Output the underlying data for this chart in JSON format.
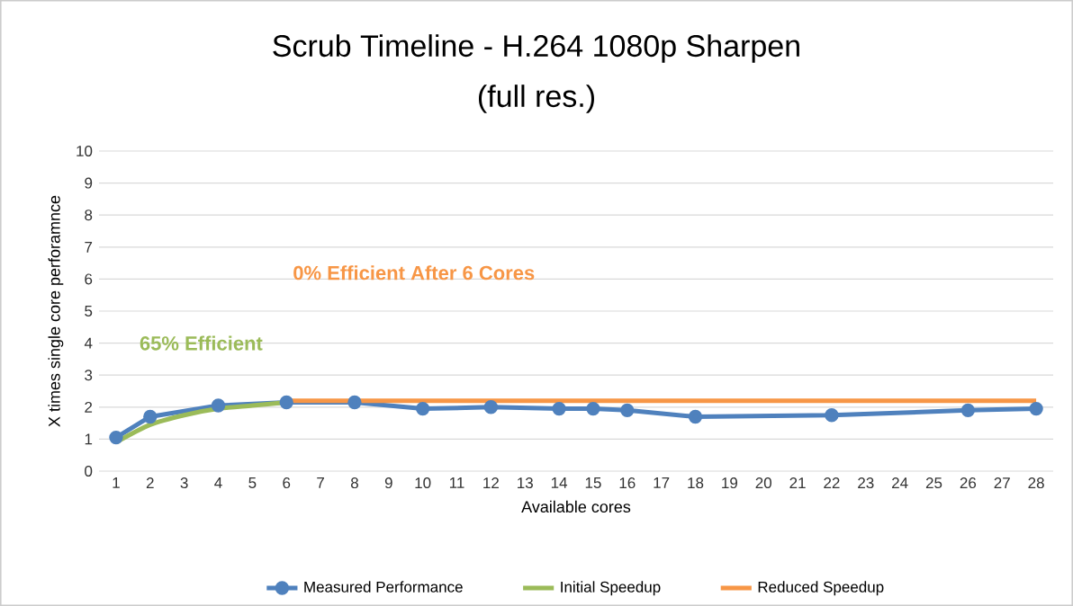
{
  "chart_data": {
    "type": "line",
    "title": "Scrub Timeline - H.264 1080p Sharpen",
    "subtitle": "(full res.)",
    "xlabel": "Available cores",
    "ylabel": "X times single core perforamnce",
    "annotations": [
      "0% Efficient After 6 Cores",
      "65% Efficient"
    ],
    "series": [
      {
        "name": "Measured Performance",
        "color": "#4f81bd",
        "marker": "circle",
        "x": [
          1,
          2,
          4,
          6,
          8,
          10,
          12,
          14,
          15,
          16,
          18,
          22,
          26,
          28
        ],
        "values": [
          1.05,
          1.7,
          2.05,
          2.15,
          2.15,
          1.95,
          2.0,
          1.95,
          1.95,
          1.9,
          1.7,
          1.75,
          1.9,
          1.95
        ]
      },
      {
        "name": "Initial Speedup",
        "color": "#9bbb59",
        "marker": "none",
        "x": [
          1,
          2,
          3,
          4,
          5,
          6
        ],
        "values": [
          0.9,
          1.45,
          1.75,
          1.95,
          2.05,
          2.15
        ]
      },
      {
        "name": "Reduced Speedup",
        "color": "#f79646",
        "marker": "none",
        "x": [
          6,
          28
        ],
        "values": [
          2.2,
          2.2
        ]
      }
    ],
    "xlim": [
      0.5,
      28.5
    ],
    "xticks": [
      1,
      2,
      3,
      4,
      5,
      6,
      7,
      8,
      9,
      10,
      11,
      12,
      13,
      14,
      15,
      16,
      17,
      18,
      19,
      20,
      21,
      22,
      23,
      24,
      25,
      26,
      27,
      28
    ],
    "ylim": [
      0,
      10
    ],
    "yticks": [
      0,
      1,
      2,
      3,
      4,
      5,
      6,
      7,
      8,
      9,
      10
    ],
    "grid": "y",
    "legend": "bottom"
  }
}
